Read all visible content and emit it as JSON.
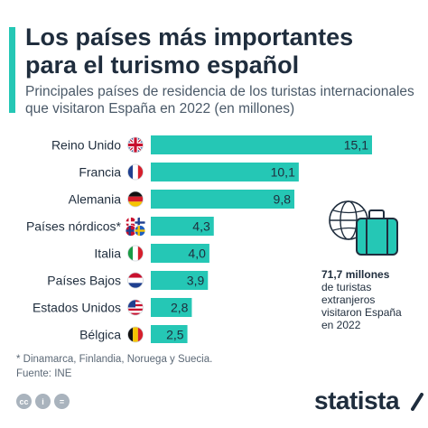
{
  "header": {
    "title_line1": "Los países más importantes",
    "title_line2": "para el turismo español",
    "subtitle_line1": "Principales países de residencia de los turistas internacionales",
    "subtitle_line2": "que visitaron España en 2022 (en millones)"
  },
  "chart_data": {
    "type": "bar",
    "orientation": "horizontal",
    "categories": [
      "Reino Unido",
      "Francia",
      "Alemania",
      "Países nórdicos*",
      "Italia",
      "Países Bajos",
      "Estados Unidos",
      "Bélgica"
    ],
    "values": [
      15.1,
      10.1,
      9.8,
      4.3,
      4.0,
      3.9,
      2.8,
      2.5
    ],
    "value_labels": [
      "15,1",
      "10,1",
      "9,8",
      "4,3",
      "4,0",
      "3,9",
      "2,8",
      "2,5"
    ],
    "flags": [
      "uk-flag-icon",
      "france-flag-icon",
      "germany-flag-icon",
      "nordic-flags-icon",
      "italy-flag-icon",
      "netherlands-flag-icon",
      "usa-flag-icon",
      "belgium-flag-icon"
    ],
    "bar_color": "#25c7b5",
    "xlim": [
      0,
      15.1
    ],
    "grid": false
  },
  "callout": {
    "strong": "71,7 millones",
    "line1": "de turistas",
    "line2": "extranjeros",
    "line3": "visitaron España",
    "line4": "en 2022",
    "icon": "globe-suitcase-icon"
  },
  "footer": {
    "footnote": "* Dinamarca, Finlandia, Noruega y Suecia.",
    "source": "Fuente: INE",
    "logo": "statista"
  },
  "colors": {
    "accent": "#25c7b5",
    "text_dark": "#1f2d3d",
    "text_muted": "#4a5968"
  }
}
